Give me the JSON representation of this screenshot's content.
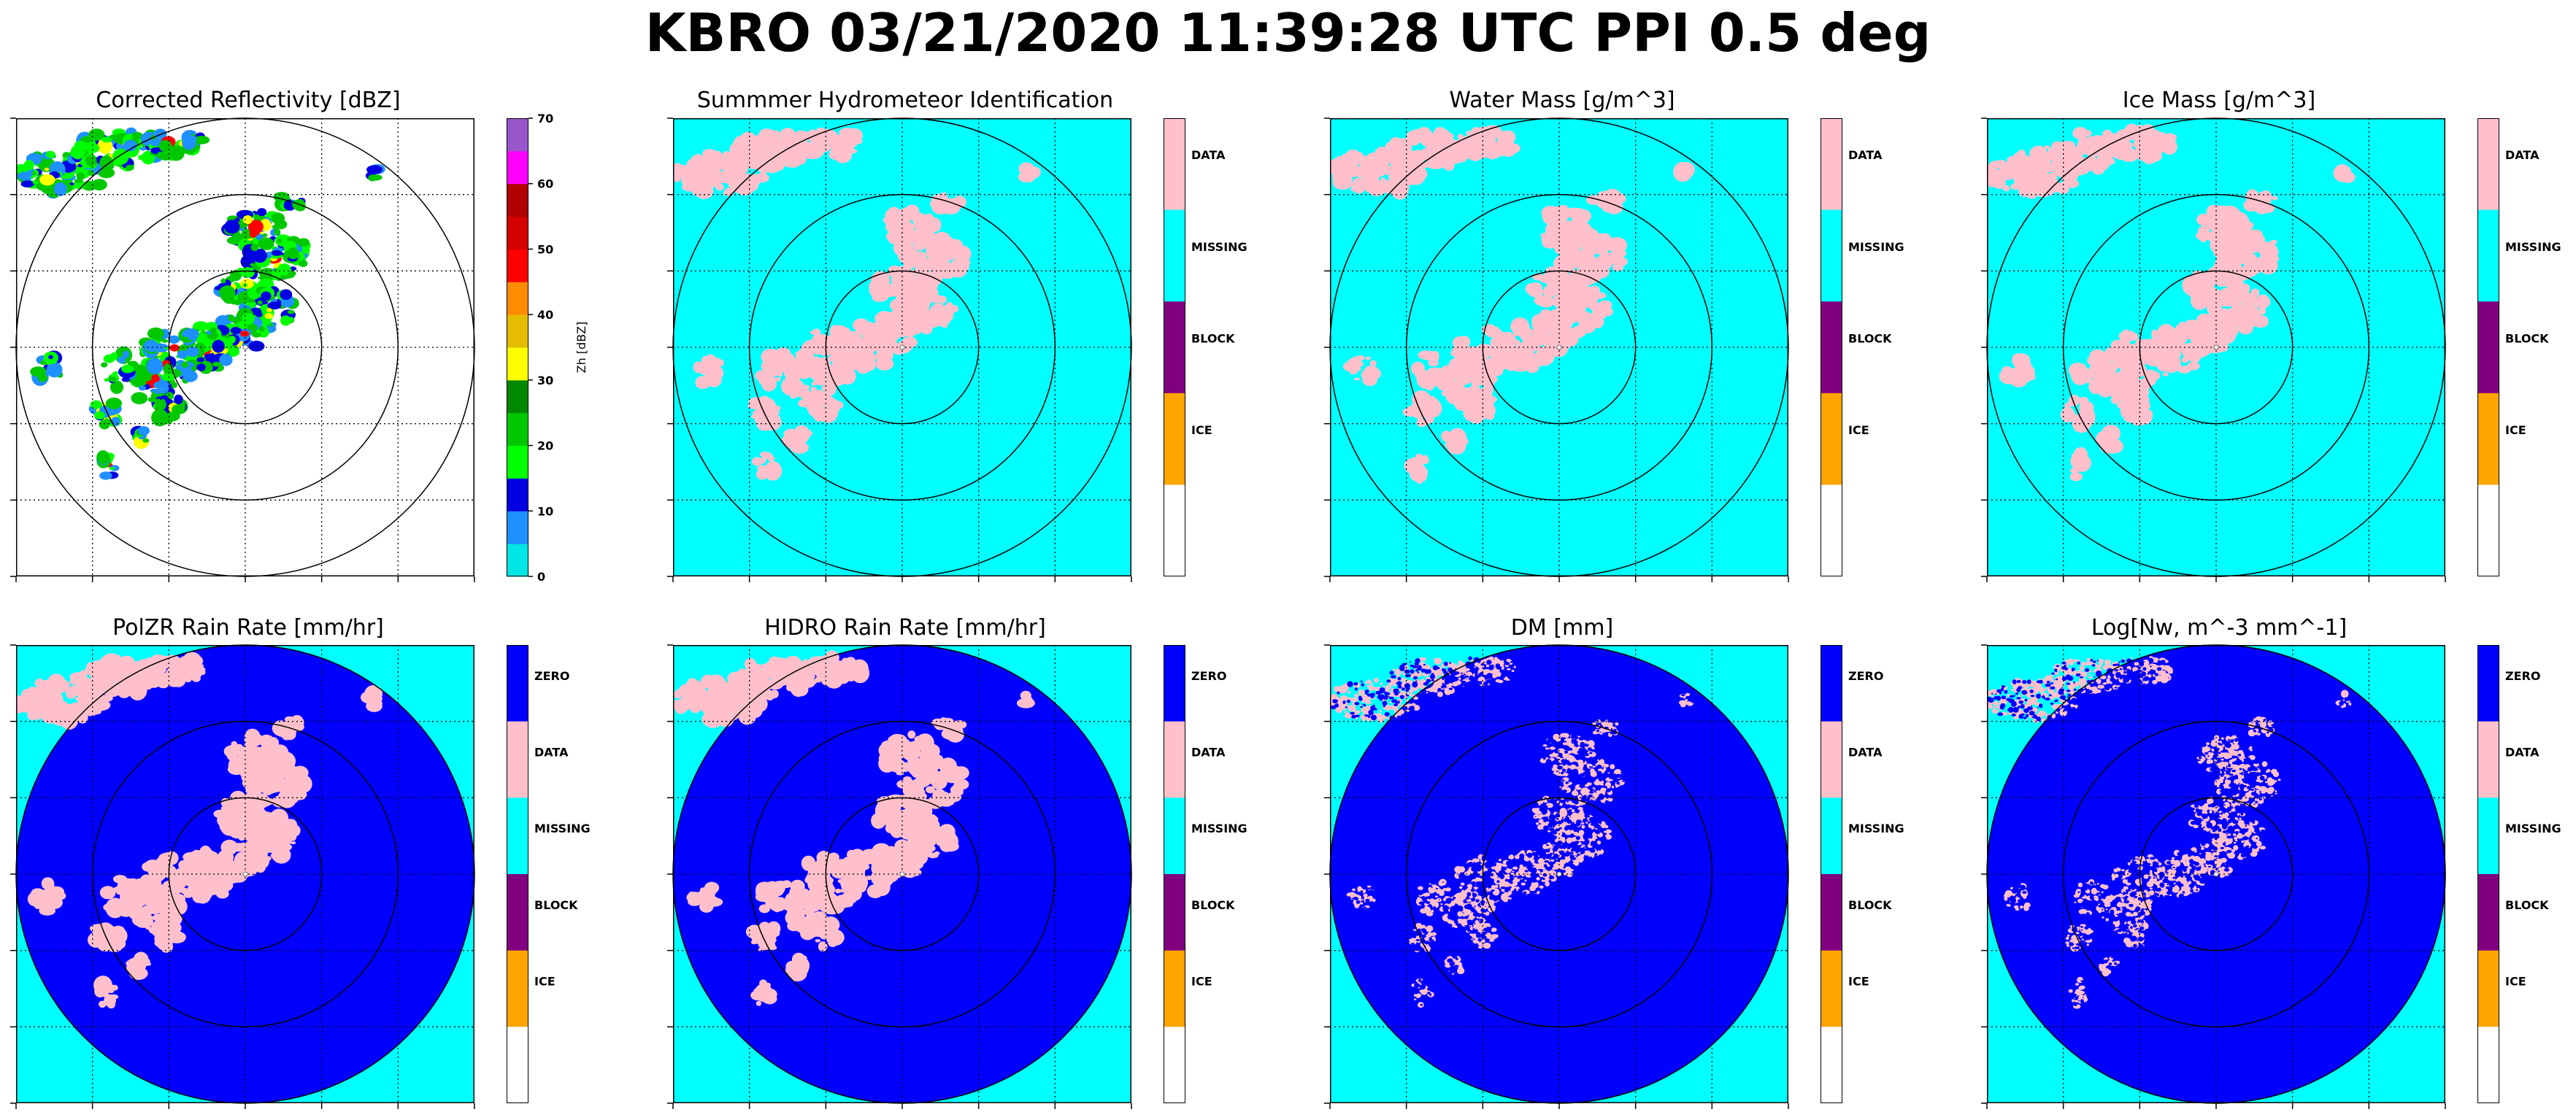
{
  "figure": {
    "title": "KBRO 03/21/2020 11:39:28 UTC PPI 0.5 deg"
  },
  "colors": {
    "missing": "#00ffff",
    "data": "#ffc0cb",
    "block": "#800080",
    "ice": "#ffa500",
    "zero": "#0000ff",
    "white": "#ffffff"
  },
  "chart_data": [
    {
      "type": "heatmap",
      "title": "Corrected Reflectivity [dBZ]",
      "field": "reflectivity",
      "colorbar": {
        "type": "continuous",
        "label": "Zh [dBZ]",
        "ticks": [
          "0",
          "10",
          "20",
          "30",
          "40",
          "50",
          "60",
          "70"
        ],
        "range": [
          0,
          70
        ],
        "colors": [
          "#00e5e5",
          "#1e90ff",
          "#0000e0",
          "#00ff00",
          "#00c800",
          "#008800",
          "#ffff00",
          "#e5bc00",
          "#ff8c00",
          "#ff0000",
          "#d40000",
          "#b00000",
          "#ff00ff",
          "#9955cc"
        ]
      },
      "grid": true,
      "range_rings": 3
    },
    {
      "type": "heatmap",
      "title": "Summmer Hydrometeor Identification",
      "field": "hid",
      "colorbar": {
        "type": "categorical",
        "categories": [
          "DATA",
          "MISSING",
          "BLOCK",
          "ICE"
        ],
        "colors": [
          "#ffc0cb",
          "#00ffff",
          "#800080",
          "#ffa500",
          "#ffffff"
        ]
      },
      "grid": true,
      "range_rings": 3
    },
    {
      "type": "heatmap",
      "title": "Water Mass [g/m^3]",
      "field": "water_mass",
      "colorbar": {
        "type": "categorical",
        "categories": [
          "DATA",
          "MISSING",
          "BLOCK",
          "ICE"
        ],
        "colors": [
          "#ffc0cb",
          "#00ffff",
          "#800080",
          "#ffa500",
          "#ffffff"
        ]
      },
      "grid": true,
      "range_rings": 3
    },
    {
      "type": "heatmap",
      "title": "Ice Mass [g/m^3]",
      "field": "ice_mass",
      "colorbar": {
        "type": "categorical",
        "categories": [
          "DATA",
          "MISSING",
          "BLOCK",
          "ICE"
        ],
        "colors": [
          "#ffc0cb",
          "#00ffff",
          "#800080",
          "#ffa500",
          "#ffffff"
        ]
      },
      "grid": true,
      "range_rings": 3
    },
    {
      "type": "heatmap",
      "title": "PolZR Rain Rate [mm/hr]",
      "field": "polzr",
      "colorbar": {
        "type": "categorical",
        "categories": [
          "ZERO",
          "DATA",
          "MISSING",
          "BLOCK",
          "ICE"
        ],
        "colors": [
          "#0000ff",
          "#ffc0cb",
          "#00ffff",
          "#800080",
          "#ffa500",
          "#ffffff"
        ]
      },
      "grid": true,
      "range_rings": 3
    },
    {
      "type": "heatmap",
      "title": "HIDRO Rain Rate [mm/hr]",
      "field": "hidro",
      "colorbar": {
        "type": "categorical",
        "categories": [
          "ZERO",
          "DATA",
          "MISSING",
          "BLOCK",
          "ICE"
        ],
        "colors": [
          "#0000ff",
          "#ffc0cb",
          "#00ffff",
          "#800080",
          "#ffa500",
          "#ffffff"
        ]
      },
      "grid": true,
      "range_rings": 3
    },
    {
      "type": "heatmap",
      "title": "DM [mm]",
      "field": "dm",
      "colorbar": {
        "type": "categorical",
        "categories": [
          "ZERO",
          "DATA",
          "MISSING",
          "BLOCK",
          "ICE"
        ],
        "colors": [
          "#0000ff",
          "#ffc0cb",
          "#00ffff",
          "#800080",
          "#ffa500",
          "#ffffff"
        ]
      },
      "grid": true,
      "range_rings": 3
    },
    {
      "type": "heatmap",
      "title": "Log[Nw, m^-3 mm^-1]",
      "field": "nw",
      "colorbar": {
        "type": "categorical",
        "categories": [
          "ZERO",
          "DATA",
          "MISSING",
          "BLOCK",
          "ICE"
        ],
        "colors": [
          "#0000ff",
          "#ffc0cb",
          "#00ffff",
          "#800080",
          "#ffa500",
          "#ffffff"
        ]
      },
      "grid": true,
      "range_rings": 3
    }
  ]
}
